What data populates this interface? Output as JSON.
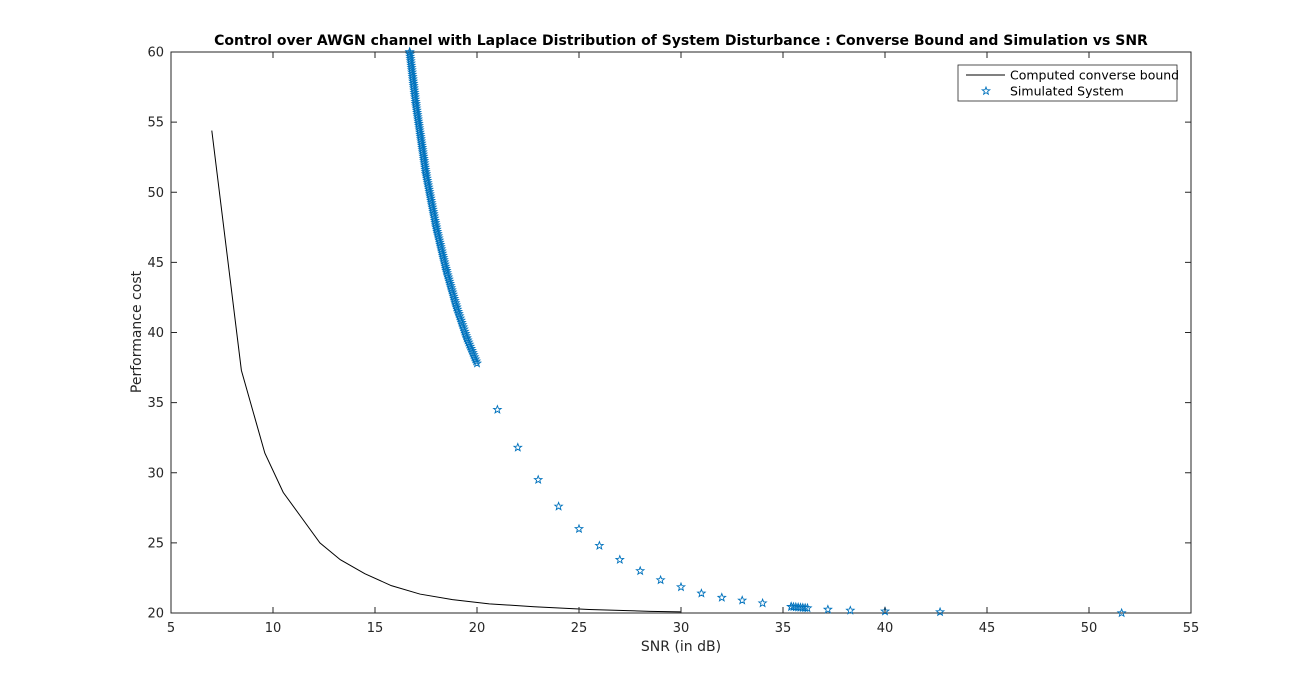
{
  "chart_data": {
    "type": "line",
    "title": "Control over AWGN channel with Laplace Distribution of System Disturbance : Converse Bound and Simulation vs SNR",
    "xlabel": "SNR (in dB)",
    "ylabel": "Performance cost",
    "xlim": [
      5,
      55
    ],
    "ylim": [
      20,
      60
    ],
    "xticks": [
      "5",
      "10",
      "15",
      "20",
      "25",
      "30",
      "35",
      "40",
      "45",
      "50",
      "55"
    ],
    "yticks": [
      "20",
      "25",
      "30",
      "35",
      "40",
      "45",
      "50",
      "55",
      "60"
    ],
    "grid": false,
    "legend_position": "top-right",
    "series": [
      {
        "name": "Computed converse bound",
        "marker": "none",
        "color": "#000000",
        "x": [
          7.0,
          8.45,
          9.6,
          10.5,
          11.4,
          12.3,
          13.3,
          14.5,
          15.8,
          17.2,
          18.8,
          20.6,
          22.8,
          25.5,
          28.5,
          30.0
        ],
        "y": [
          54.4,
          37.3,
          31.4,
          28.6,
          26.8,
          25.0,
          23.8,
          22.8,
          21.95,
          21.35,
          20.95,
          20.65,
          20.45,
          20.25,
          20.12,
          20.08
        ]
      },
      {
        "name": "Simulated System",
        "marker": "star",
        "color": "#0072BD",
        "x": [
          16.7,
          17.0,
          17.5,
          18.0,
          18.5,
          19.0,
          19.5,
          20.0,
          21.0,
          22.0,
          23.0,
          24.0,
          25.0,
          26.0,
          27.0,
          28.0,
          29.0,
          30.0,
          31.0,
          32.0,
          33.0,
          34.0,
          35.4,
          36.2,
          37.2,
          38.3,
          40.0,
          42.7,
          51.6
        ],
        "y": [
          60.0,
          56.3,
          51.3,
          47.5,
          44.4,
          41.8,
          39.6,
          37.8,
          34.5,
          31.8,
          29.5,
          27.6,
          26.0,
          24.8,
          23.8,
          23.0,
          22.35,
          21.85,
          21.4,
          21.1,
          20.9,
          20.7,
          20.45,
          20.35,
          20.25,
          20.18,
          20.12,
          20.07,
          20.0
        ]
      }
    ]
  }
}
